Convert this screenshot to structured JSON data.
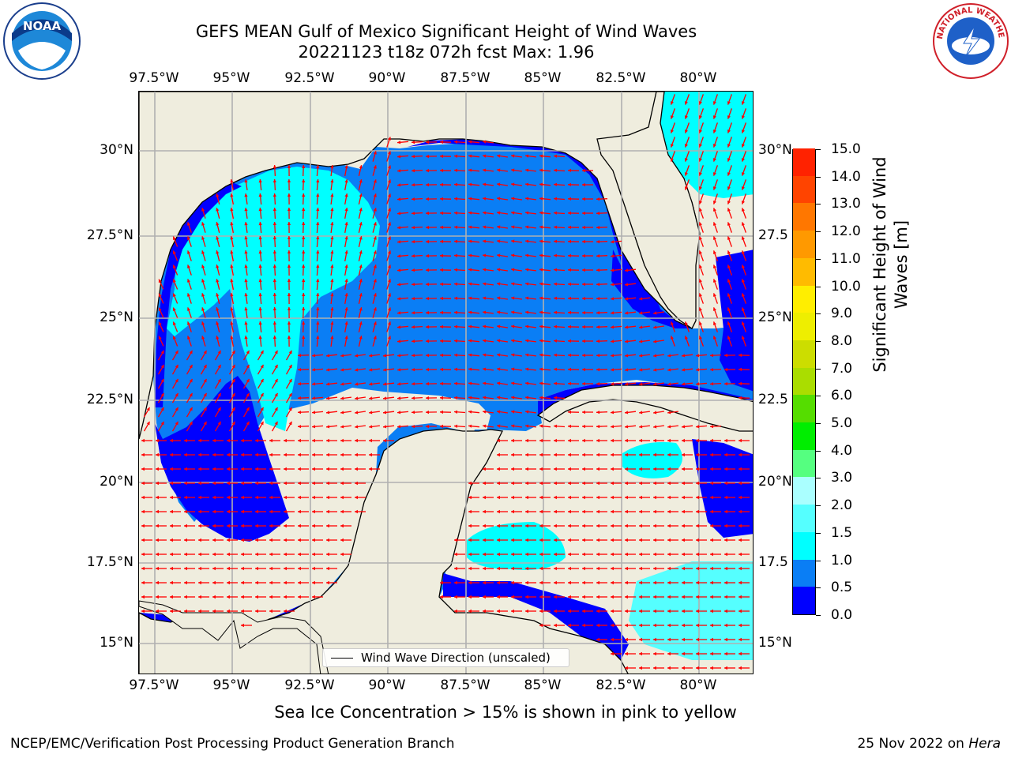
{
  "header": {
    "title_line1": "GEFS MEAN Gulf of Mexico Significant Height of Wind Waves",
    "title_line2": "20221123 t18z 072h fcst   Max: 1.96"
  },
  "axes": {
    "lon_labels": [
      "97.5°W",
      "95°W",
      "92.5°W",
      "90°W",
      "87.5°W",
      "85°W",
      "82.5°W",
      "80°W"
    ],
    "lat_labels": [
      "30°N",
      "27.5°N",
      "25°N",
      "22.5°N",
      "20°N",
      "17.5°N",
      "15°N"
    ],
    "right_lat_labels": [
      "30°N",
      "27.5",
      "25°N",
      "22.5",
      "20°N",
      "17.5",
      "15°N"
    ]
  },
  "legend": {
    "label": "Wind Wave Direction (unscaled)"
  },
  "colorbar": {
    "label_line1": "Significant Height of Wind",
    "label_line2": "Waves [m]",
    "ticks": [
      "15.0",
      "14.0",
      "13.0",
      "12.0",
      "11.0",
      "10.0",
      "9.0",
      "8.0",
      "7.0",
      "6.0",
      "5.0",
      "4.0",
      "3.0",
      "2.0",
      "1.5",
      "1.0",
      "0.5",
      "0.0"
    ],
    "bins": [
      {
        "from": 0.0,
        "to": 0.5,
        "color": "#0000ff"
      },
      {
        "from": 0.5,
        "to": 1.0,
        "color": "#0a7ef5"
      },
      {
        "from": 1.0,
        "to": 1.5,
        "color": "#00ffff"
      },
      {
        "from": 1.5,
        "to": 2.0,
        "color": "#55ffff"
      },
      {
        "from": 2.0,
        "to": 3.0,
        "color": "#aaffff"
      },
      {
        "from": 3.0,
        "to": 4.0,
        "color": "#55ff80"
      },
      {
        "from": 4.0,
        "to": 5.0,
        "color": "#00ee00"
      },
      {
        "from": 5.0,
        "to": 6.0,
        "color": "#55dd00"
      },
      {
        "from": 6.0,
        "to": 7.0,
        "color": "#aadd00"
      },
      {
        "from": 7.0,
        "to": 8.0,
        "color": "#ccdd00"
      },
      {
        "from": 8.0,
        "to": 9.0,
        "color": "#eeee00"
      },
      {
        "from": 9.0,
        "to": 10.0,
        "color": "#ffee00"
      },
      {
        "from": 10.0,
        "to": 11.0,
        "color": "#ffbb00"
      },
      {
        "from": 11.0,
        "to": 12.0,
        "color": "#ff9900"
      },
      {
        "from": 12.0,
        "to": 13.0,
        "color": "#ff7700"
      },
      {
        "from": 13.0,
        "to": 14.0,
        "color": "#ff4400"
      },
      {
        "from": 14.0,
        "to": 15.0,
        "color": "#ff2200"
      },
      {
        "from": 15.0,
        "to": 15.0,
        "color": "#ff0000"
      }
    ]
  },
  "notes": {
    "sea_ice": "Sea Ice Concentration > 15% is shown in pink to yellow",
    "producer": "NCEP/EMC/Verification Post Processing Product Generation Branch",
    "date_prefix": "25 Nov 2022 on ",
    "machine": "Hera"
  },
  "logos": {
    "noaa_text": "NOAA",
    "nws_text": "NATIONAL WEATHER SERVICE"
  },
  "colors": {
    "land": "#efedde",
    "vector": "#ff0000",
    "grid": "#b0b0b0"
  }
}
